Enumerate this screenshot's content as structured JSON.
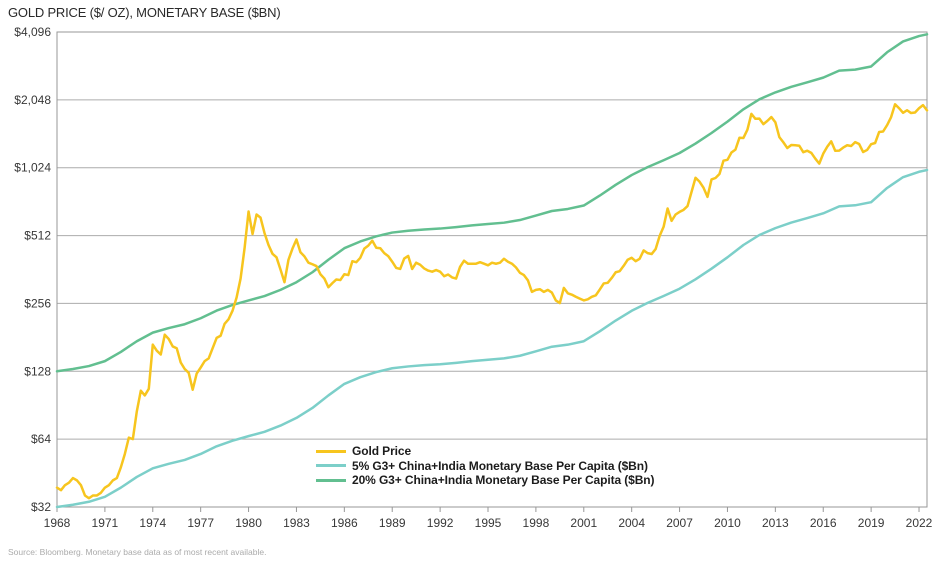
{
  "chart_data": {
    "type": "line",
    "title": "GOLD PRICE ($/ OZ), MONETARY BASE ($BN)",
    "source_note": "Source: Bloomberg. Monetary base data as of most recent available.",
    "grid": true,
    "legend_position": "inside-bottom-center-left",
    "background": "#ffffff",
    "x_axis": {
      "min": 1968,
      "max": 2022.5,
      "tick_years": [
        1968,
        1971,
        1974,
        1977,
        1980,
        1983,
        1986,
        1989,
        1992,
        1995,
        1998,
        2001,
        2004,
        2007,
        2010,
        2013,
        2016,
        2019,
        2022
      ]
    },
    "y_axis": {
      "scale": "log2",
      "min": 32,
      "max": 4096,
      "ticks": [
        {
          "value": 4096,
          "label": "$4,096"
        },
        {
          "value": 2048,
          "label": "$2,048"
        },
        {
          "value": 1024,
          "label": "$1,024"
        },
        {
          "value": 512,
          "label": "$512"
        },
        {
          "value": 256,
          "label": "$256"
        },
        {
          "value": 128,
          "label": "$128"
        },
        {
          "value": 64,
          "label": "$64"
        },
        {
          "value": 32,
          "label": "$32"
        }
      ]
    },
    "series": [
      {
        "name": "Gold Price",
        "color": "#F7C51E",
        "stroke_width": 2.5,
        "x_start": 1968,
        "x_step": 0.25,
        "values": [
          39,
          38,
          40,
          41,
          43,
          42,
          40,
          36,
          35,
          36,
          36,
          37,
          39,
          40,
          42,
          43,
          48,
          55,
          65,
          64,
          85,
          105,
          100,
          107,
          168,
          158,
          152,
          186,
          178,
          165,
          162,
          140,
          131,
          126,
          106,
          125,
          133,
          142,
          146,
          162,
          180,
          184,
          208,
          218,
          238,
          272,
          330,
          450,
          655,
          520,
          635,
          615,
          525,
          465,
          425,
          410,
          362,
          318,
          400,
          448,
          492,
          432,
          414,
          388,
          382,
          375,
          345,
          330,
          302,
          315,
          327,
          325,
          345,
          342,
          394,
          390,
          408,
          448,
          462,
          486,
          452,
          450,
          428,
          415,
          392,
          368,
          364,
          405,
          416,
          364,
          388,
          380,
          366,
          358,
          354,
          360,
          354,
          338,
          344,
          334,
          330,
          372,
          396,
          384,
          384,
          384,
          390,
          384,
          378,
          388,
          384,
          388,
          404,
          392,
          384,
          370,
          350,
          342,
          324,
          288,
          294,
          296,
          288,
          294,
          286,
          264,
          257,
          300,
          284,
          280,
          274,
          269,
          264,
          267,
          274,
          278,
          295,
          314,
          316,
          332,
          352,
          356,
          376,
          400,
          408,
          394,
          404,
          440,
          428,
          424,
          446,
          510,
          560,
          675,
          595,
          635,
          652,
          666,
          692,
          800,
          924,
          888,
          835,
          760,
          908,
          922,
          960,
          1100,
          1110,
          1196,
          1232,
          1390,
          1388,
          1510,
          1775,
          1688,
          1690,
          1598,
          1652,
          1718,
          1630,
          1400,
          1328,
          1252,
          1292,
          1288,
          1282,
          1200,
          1218,
          1192,
          1124,
          1068,
          1182,
          1268,
          1340,
          1218,
          1220,
          1258,
          1288,
          1278,
          1330,
          1304,
          1202,
          1228,
          1302,
          1318,
          1474,
          1482,
          1582,
          1716,
          1958,
          1880,
          1794,
          1842,
          1790,
          1800,
          1880,
          1940,
          1840
        ]
      },
      {
        "name": "5% G3+ China+India Monetary Base Per Capita ($Bn)",
        "color": "#7CCFC9",
        "stroke_width": 2.5,
        "x_start": 1968,
        "x_step": 1,
        "values": [
          32,
          32.75,
          33.75,
          35.5,
          39,
          43.5,
          47.5,
          49.75,
          51.75,
          55,
          59.5,
          63,
          66,
          69,
          73.5,
          79.5,
          88,
          100,
          112.5,
          120.5,
          127,
          132,
          134.5,
          136.25,
          137.5,
          139.5,
          142,
          144,
          146,
          150,
          157,
          164.5,
          168,
          174,
          192.5,
          215,
          237.5,
          257.5,
          276.25,
          297.5,
          327.5,
          365,
          410,
          465,
          515,
          552.5,
          585,
          612.5,
          642.5,
          690,
          697.5,
          720,
          832.5,
          930,
          982.5,
          1000
        ]
      },
      {
        "name": "20% G3+ China+India Monetary Base Per Capita ($Bn)",
        "color": "#62BF90",
        "stroke_width": 2.5,
        "x_start": 1968,
        "x_step": 1,
        "values": [
          128,
          131,
          135,
          142,
          156,
          174,
          190,
          199,
          207,
          220,
          238,
          252,
          264,
          276,
          294,
          318,
          352,
          400,
          450,
          482,
          508,
          528,
          538,
          545,
          550,
          558,
          568,
          576,
          584,
          600,
          628,
          658,
          672,
          696,
          770,
          860,
          950,
          1030,
          1105,
          1190,
          1310,
          1460,
          1640,
          1860,
          2060,
          2210,
          2340,
          2450,
          2570,
          2760,
          2790,
          2880,
          3330,
          3720,
          3930,
          4000
        ]
      }
    ]
  }
}
